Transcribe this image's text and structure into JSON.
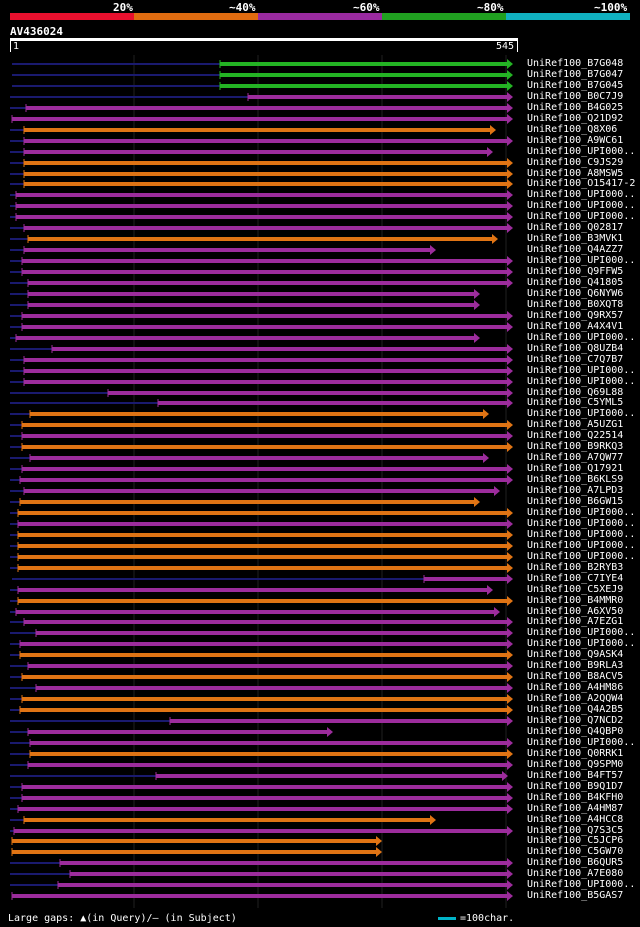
{
  "header": {
    "scale_labels": [
      "20%",
      "~40%",
      "~60%",
      "~80%",
      "~100%"
    ],
    "scale_colors": [
      "#e8102e",
      "#e06c10",
      "#9a2aa0",
      "#20a020",
      "#10b0c0"
    ]
  },
  "query": {
    "id": "AV436024",
    "start": "1",
    "end": "545"
  },
  "colors": {
    "green": "#24b424",
    "orange": "#e07414",
    "purple": "#9c2c9c",
    "gap": "#1a1a6e",
    "marker": "#f4f0a0"
  },
  "hits": [
    {
      "label": "UniRef100_B7G048",
      "color": "green",
      "start": 220,
      "end": 513,
      "gap_start": 12
    },
    {
      "label": "UniRef100_B7G047",
      "color": "green",
      "start": 220,
      "end": 513,
      "gap_start": 12
    },
    {
      "label": "UniRef100_B7G045",
      "color": "green",
      "start": 220,
      "end": 513,
      "gap_start": 12
    },
    {
      "label": "UniRef100_B0C7J9",
      "color": "purple",
      "start": 248,
      "end": 513
    },
    {
      "label": "UniRef100_B4G025",
      "color": "purple",
      "start": 26,
      "end": 513
    },
    {
      "label": "UniRef100_Q21D92",
      "color": "purple",
      "start": 12,
      "end": 513
    },
    {
      "label": "UniRef100_Q8X06",
      "color": "orange",
      "start": 24,
      "end": 496
    },
    {
      "label": "UniRef100_A9WC61",
      "color": "purple",
      "start": 24,
      "end": 513
    },
    {
      "label": "UniRef100_UPI000..",
      "color": "purple",
      "start": 24,
      "end": 493
    },
    {
      "label": "UniRef100_C9JS29",
      "color": "orange",
      "start": 24,
      "end": 513
    },
    {
      "label": "UniRef100_A8MSW5",
      "color": "orange",
      "start": 24,
      "end": 513
    },
    {
      "label": "UniRef100_O15417-2",
      "color": "orange",
      "start": 24,
      "end": 513
    },
    {
      "label": "UniRef100_UPI000..",
      "color": "purple",
      "start": 16,
      "end": 513
    },
    {
      "label": "UniRef100_UPI000..",
      "color": "purple",
      "start": 16,
      "end": 513
    },
    {
      "label": "UniRef100_UPI000..",
      "color": "purple",
      "start": 16,
      "end": 513
    },
    {
      "label": "UniRef100_Q02817",
      "color": "purple",
      "start": 24,
      "end": 513
    },
    {
      "label": "UniRef100_B3MVK1",
      "color": "orange",
      "start": 28,
      "end": 498
    },
    {
      "label": "UniRef100_Q4AZZ7",
      "color": "purple",
      "start": 24,
      "end": 436
    },
    {
      "label": "UniRef100_UPI000..",
      "color": "purple",
      "start": 22,
      "end": 513
    },
    {
      "label": "UniRef100_Q9FFW5",
      "color": "purple",
      "start": 22,
      "end": 513
    },
    {
      "label": "UniRef100_Q41805",
      "color": "purple",
      "start": 28,
      "end": 513
    },
    {
      "label": "UniRef100_Q6NYW6",
      "color": "purple",
      "start": 28,
      "end": 480
    },
    {
      "label": "UniRef100_B0XQT8",
      "color": "purple",
      "start": 28,
      "end": 480
    },
    {
      "label": "UniRef100_Q9RX57",
      "color": "purple",
      "start": 22,
      "end": 513
    },
    {
      "label": "UniRef100_A4X4V1",
      "color": "purple",
      "start": 22,
      "end": 513
    },
    {
      "label": "UniRef100_UPI000..",
      "color": "purple",
      "start": 16,
      "end": 480
    },
    {
      "label": "UniRef100_Q8UZB4",
      "color": "purple",
      "start": 52,
      "end": 513
    },
    {
      "label": "UniRef100_C7Q7B7",
      "color": "purple",
      "start": 24,
      "end": 513
    },
    {
      "label": "UniRef100_UPI000..",
      "color": "purple",
      "start": 24,
      "end": 513
    },
    {
      "label": "UniRef100_UPI000..",
      "color": "purple",
      "start": 24,
      "end": 513
    },
    {
      "label": "UniRef100_Q69L88",
      "color": "purple",
      "start": 108,
      "end": 513
    },
    {
      "label": "UniRef100_C5YML5",
      "color": "purple",
      "start": 158,
      "end": 513
    },
    {
      "label": "UniRef100_UPI000..",
      "color": "orange",
      "start": 30,
      "end": 489
    },
    {
      "label": "UniRef100_A5UZG1",
      "color": "orange",
      "start": 22,
      "end": 513
    },
    {
      "label": "UniRef100_Q22514",
      "color": "purple",
      "start": 22,
      "end": 513
    },
    {
      "label": "UniRef100_B9RKQ3",
      "color": "orange",
      "start": 22,
      "end": 513
    },
    {
      "label": "UniRef100_A7QW77",
      "color": "purple",
      "start": 30,
      "end": 489
    },
    {
      "label": "UniRef100_Q17921",
      "color": "purple",
      "start": 22,
      "end": 513
    },
    {
      "label": "UniRef100_B6KLS9",
      "color": "purple",
      "start": 20,
      "end": 513
    },
    {
      "label": "UniRef100_A7LPD3",
      "color": "purple",
      "start": 24,
      "end": 500
    },
    {
      "label": "UniRef100_B6GW15",
      "color": "orange",
      "start": 20,
      "end": 480
    },
    {
      "label": "UniRef100_UPI000..",
      "color": "orange",
      "start": 18,
      "end": 513
    },
    {
      "label": "UniRef100_UPI000..",
      "color": "purple",
      "start": 18,
      "end": 513
    },
    {
      "label": "UniRef100_UPI000..",
      "color": "orange",
      "start": 18,
      "end": 513
    },
    {
      "label": "UniRef100_UPI000..",
      "color": "orange",
      "start": 18,
      "end": 513
    },
    {
      "label": "UniRef100_UPI000..",
      "color": "orange",
      "start": 18,
      "end": 513
    },
    {
      "label": "UniRef100_B2RYB3",
      "color": "orange",
      "start": 18,
      "end": 513
    },
    {
      "label": "UniRef100_C7IYE4",
      "color": "purple",
      "start": 424,
      "end": 513,
      "gap_start": 12
    },
    {
      "label": "UniRef100_C5XEJ9",
      "color": "purple",
      "start": 18,
      "end": 493
    },
    {
      "label": "UniRef100_B4MMR0",
      "color": "orange",
      "start": 18,
      "end": 513
    },
    {
      "label": "UniRef100_A6XV50",
      "color": "purple",
      "start": 16,
      "end": 500
    },
    {
      "label": "UniRef100_A7EZG1",
      "color": "purple",
      "start": 24,
      "end": 513
    },
    {
      "label": "UniRef100_UPI000..",
      "color": "purple",
      "start": 36,
      "end": 513
    },
    {
      "label": "UniRef100_UPI000..",
      "color": "purple",
      "start": 20,
      "end": 513
    },
    {
      "label": "UniRef100_Q9ASK4",
      "color": "orange",
      "start": 20,
      "end": 513
    },
    {
      "label": "UniRef100_B9RLA3",
      "color": "purple",
      "start": 28,
      "end": 513
    },
    {
      "label": "UniRef100_B8ACV5",
      "color": "orange",
      "start": 22,
      "end": 513
    },
    {
      "label": "UniRef100_A4HM86",
      "color": "purple",
      "start": 36,
      "end": 513
    },
    {
      "label": "UniRef100_A2QQW4",
      "color": "orange",
      "start": 22,
      "end": 513
    },
    {
      "label": "UniRef100_Q4A2B5",
      "color": "orange",
      "start": 20,
      "end": 513
    },
    {
      "label": "UniRef100_Q7NCD2",
      "color": "purple",
      "start": 170,
      "end": 513
    },
    {
      "label": "UniRef100_Q4QBP0",
      "color": "purple",
      "start": 28,
      "end": 333
    },
    {
      "label": "UniRef100_UPI000..",
      "color": "purple",
      "start": 30,
      "end": 513
    },
    {
      "label": "UniRef100_Q0RRK1",
      "color": "orange",
      "start": 30,
      "end": 513
    },
    {
      "label": "UniRef100_Q9SPM0",
      "color": "purple",
      "start": 28,
      "end": 513
    },
    {
      "label": "UniRef100_B4FT57",
      "color": "purple",
      "start": 156,
      "end": 508
    },
    {
      "label": "UniRef100_B9Q1D7",
      "color": "purple",
      "start": 22,
      "end": 513
    },
    {
      "label": "UniRef100_B4KFH0",
      "color": "purple",
      "start": 22,
      "end": 513
    },
    {
      "label": "UniRef100_A4HM87",
      "color": "purple",
      "start": 18,
      "end": 513
    },
    {
      "label": "UniRef100_A4HCC8",
      "color": "orange",
      "start": 24,
      "end": 436
    },
    {
      "label": "UniRef100_Q7S3C5",
      "color": "purple",
      "start": 14,
      "end": 513
    },
    {
      "label": "UniRef100_C5JCP6",
      "color": "orange",
      "start": 12,
      "end": 382
    },
    {
      "label": "UniRef100_C5GW70",
      "color": "orange",
      "start": 12,
      "end": 382
    },
    {
      "label": "UniRef100_B6QUR5",
      "color": "purple",
      "start": 60,
      "end": 513
    },
    {
      "label": "UniRef100_A7E080",
      "color": "purple",
      "start": 70,
      "end": 513
    },
    {
      "label": "UniRef100_UPI000..",
      "color": "purple",
      "start": 58,
      "end": 513
    },
    {
      "label": "UniRef100_B5GAS7",
      "color": "purple",
      "start": 12,
      "end": 513
    }
  ],
  "footer": {
    "gaps_text": "Large gaps: ▲(in Query)/– (in Subject)",
    "legend_text": "=100char."
  }
}
